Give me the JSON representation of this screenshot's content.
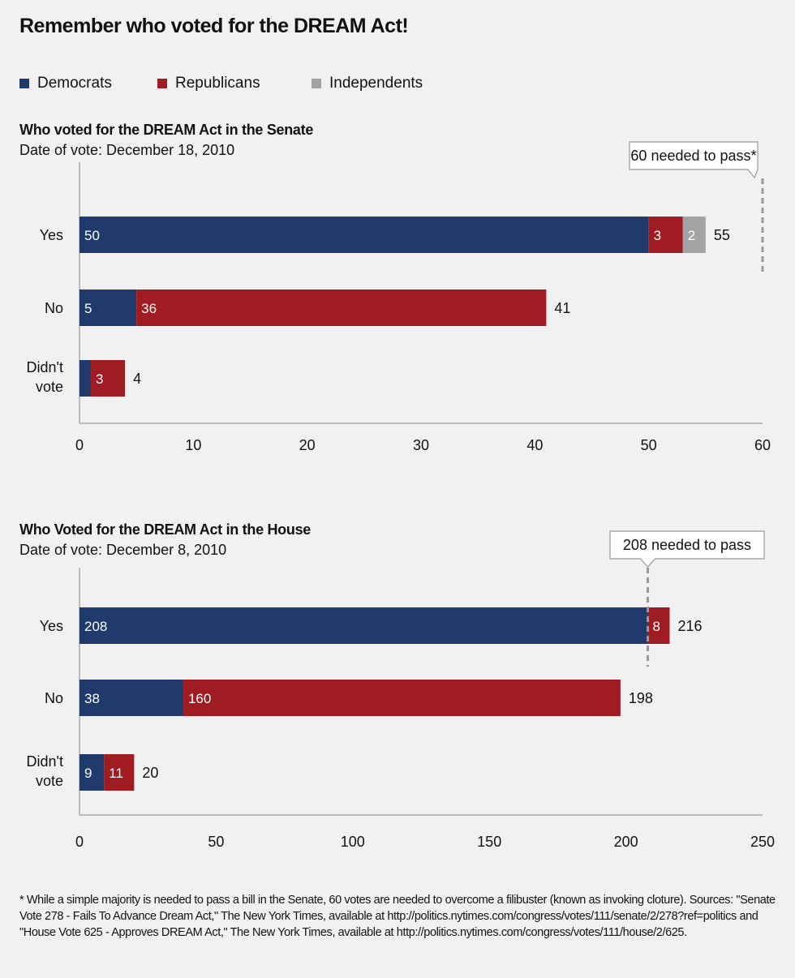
{
  "title": "Remember who voted for the DREAM Act!",
  "legend": [
    {
      "name": "Democrats",
      "color": "#1f3a6b"
    },
    {
      "name": "Republicans",
      "color": "#9e1c22"
    },
    {
      "name": "Independents",
      "color": "#a3a3a3"
    }
  ],
  "chart_data": [
    {
      "type": "bar",
      "orientation": "horizontal",
      "stacked": true,
      "title": "Who voted for the DREAM Act in the Senate",
      "subtitle": "Date of vote: December 18, 2010",
      "categories": [
        "Yes",
        "No",
        "Didn't vote"
      ],
      "series": [
        {
          "name": "Democrats",
          "values": [
            50,
            5,
            1
          ],
          "labels": [
            "50",
            "5",
            ""
          ]
        },
        {
          "name": "Republicans",
          "values": [
            3,
            36,
            3
          ],
          "labels": [
            "3",
            "36",
            "3"
          ]
        },
        {
          "name": "Independents",
          "values": [
            2,
            0,
            0
          ],
          "labels": [
            "2",
            "",
            ""
          ]
        }
      ],
      "totals": [
        55,
        41,
        4
      ],
      "xlim": [
        0,
        60
      ],
      "xticks": [
        0,
        10,
        20,
        30,
        40,
        50,
        60
      ],
      "threshold": {
        "value": 60,
        "label": "60 needed to pass*"
      }
    },
    {
      "type": "bar",
      "orientation": "horizontal",
      "stacked": true,
      "title": "Who Voted for the DREAM Act in the House",
      "subtitle": "Date of vote: December 8, 2010",
      "categories": [
        "Yes",
        "No",
        "Didn't vote"
      ],
      "series": [
        {
          "name": "Democrats",
          "values": [
            208,
            38,
            9
          ],
          "labels": [
            "208",
            "38",
            "9"
          ]
        },
        {
          "name": "Republicans",
          "values": [
            8,
            160,
            11
          ],
          "labels": [
            "8",
            "160",
            "11"
          ]
        }
      ],
      "totals": [
        216,
        198,
        20
      ],
      "xlim": [
        0,
        250
      ],
      "xticks": [
        0,
        50,
        100,
        150,
        200,
        250
      ],
      "threshold": {
        "value": 208,
        "label": "208 needed to pass"
      }
    }
  ],
  "footnote": "* While a simple majority is needed to pass a bill in the Senate, 60 votes are needed to overcome a filibuster (known as invoking cloture). Sources: \"Senate Vote 278 - Fails To Advance Dream Act,\" The New York Times, available at http://politics.nytimes.com/congress/votes/111/senate/2/278?ref=politics and \"House Vote 625 - Approves DREAM Act,\" The New York Times, available at http://politics.nytimes.com/congress/votes/111/house/2/625."
}
